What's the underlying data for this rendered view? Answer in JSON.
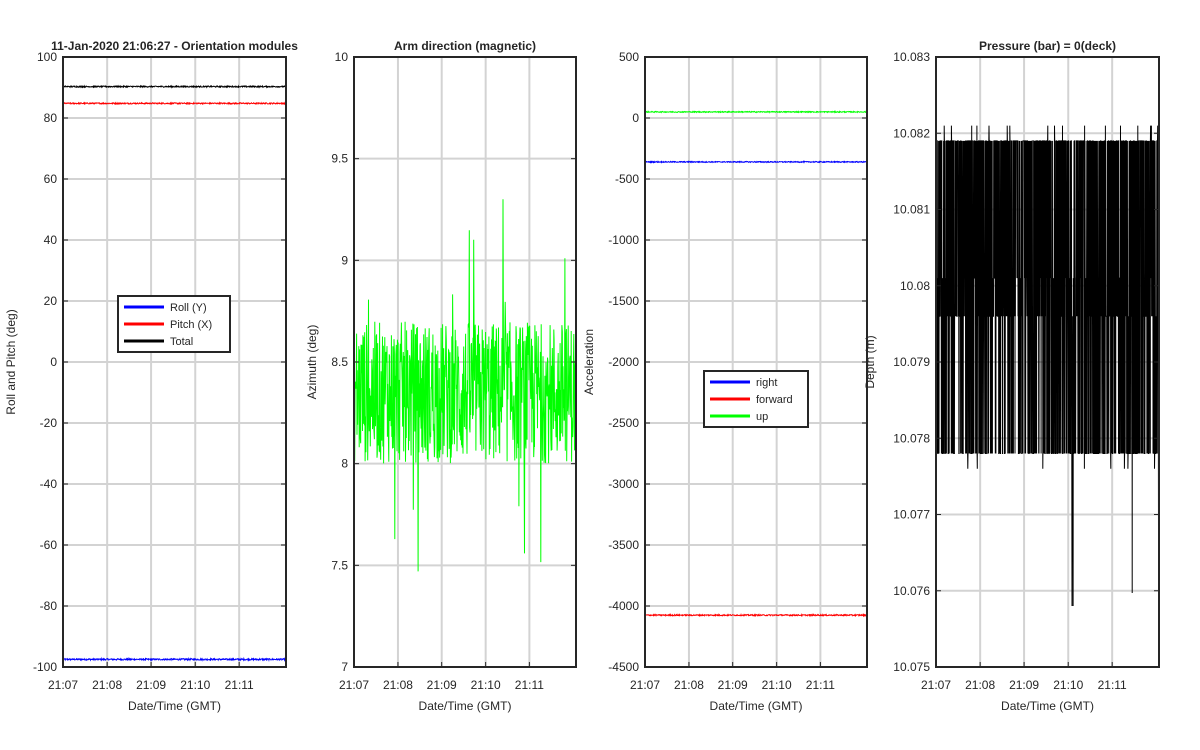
{
  "chart_data": [
    {
      "type": "line",
      "title": "11-Jan-2020 21:06:27 - Orientation modules",
      "xlabel": "Date/Time (GMT)",
      "ylabel": "Roll and Pitch (deg)",
      "x_ticks": [
        "21:07",
        "21:08",
        "21:09",
        "21:10",
        "21:11"
      ],
      "ylim": [
        -100,
        100
      ],
      "y_ticks": [
        -100,
        -80,
        -60,
        -40,
        -20,
        0,
        20,
        40,
        60,
        80,
        100
      ],
      "grid": true,
      "legend_position": "center",
      "series": [
        {
          "name": "Roll (Y)",
          "color": "#0000ff",
          "value": -97.5,
          "noise": 0.25
        },
        {
          "name": "Pitch (X)",
          "color": "#ff0000",
          "value": 84.8,
          "noise": 0.2
        },
        {
          "name": "Total",
          "color": "#000000",
          "value": 90.3,
          "noise": 0.2
        }
      ]
    },
    {
      "type": "line",
      "title": "Arm direction (magnetic)",
      "xlabel": "Date/Time (GMT)",
      "ylabel": "Azimuth (deg)",
      "x_ticks": [
        "21:07",
        "21:08",
        "21:09",
        "21:10",
        "21:11"
      ],
      "ylim": [
        7,
        10
      ],
      "y_ticks": [
        7,
        7.5,
        8,
        8.5,
        9,
        9.5,
        10
      ],
      "grid": true,
      "series": [
        {
          "color": "#00ff00",
          "value": 8.35,
          "noise": 0.35,
          "min": 7.47,
          "max": 9.55
        }
      ]
    },
    {
      "type": "line",
      "title": "",
      "xlabel": "Date/Time (GMT)",
      "ylabel": "Acceleration",
      "x_ticks": [
        "21:07",
        "21:08",
        "21:09",
        "21:10",
        "21:11"
      ],
      "ylim": [
        -4500,
        500
      ],
      "y_ticks": [
        -4500,
        -4000,
        -3500,
        -3000,
        -2500,
        -2000,
        -1500,
        -1000,
        -500,
        0,
        500
      ],
      "grid": true,
      "legend_position": "center-right",
      "series": [
        {
          "name": "right",
          "color": "#0000ff",
          "value": -360,
          "noise": 4
        },
        {
          "name": "forward",
          "color": "#ff0000",
          "value": -4075,
          "noise": 5
        },
        {
          "name": "up",
          "color": "#00ff00",
          "value": 50,
          "noise": 4
        }
      ]
    },
    {
      "type": "line",
      "title": "Pressure (bar) = 0(deck)",
      "xlabel": "Date/Time (GMT)",
      "ylabel": "Depth (m)",
      "x_ticks": [
        "21:07",
        "21:08",
        "21:09",
        "21:10",
        "21:11"
      ],
      "ylim": [
        10.075,
        10.083
      ],
      "y_ticks": [
        "10.075",
        "10.076",
        "10.077",
        "10.078",
        "10.079",
        "10.08",
        "10.081",
        "10.082",
        "10.083"
      ],
      "grid": true,
      "series": [
        {
          "color": "#000000",
          "levels": [
            10.0778,
            10.0796,
            10.0801,
            10.0819
          ],
          "min": 10.0758,
          "max": 10.0821
        }
      ]
    }
  ]
}
